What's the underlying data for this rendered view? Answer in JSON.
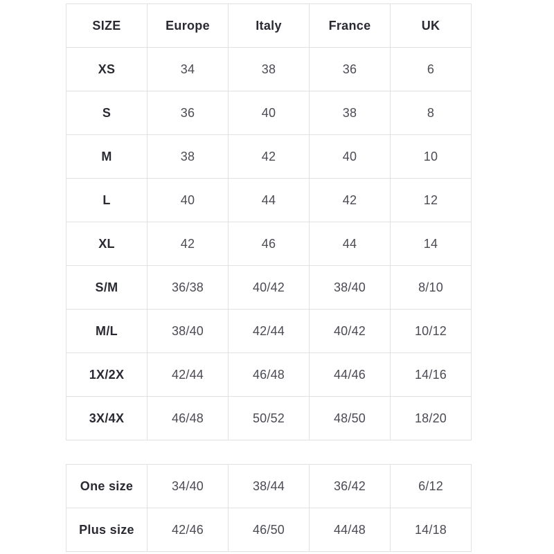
{
  "page": {
    "background": "#ffffff"
  },
  "colors": {
    "border": "#e1e1e1",
    "header_text": "#2a2a33",
    "value_text": "#4b4b54",
    "cell_background": "#ffffff"
  },
  "chart_data": [
    {
      "type": "table",
      "columns": [
        "SIZE",
        "Europe",
        "Italy",
        "France",
        "UK"
      ],
      "rows": [
        [
          "XS",
          "34",
          "38",
          "36",
          "6"
        ],
        [
          "S",
          "36",
          "40",
          "38",
          "8"
        ],
        [
          "M",
          "38",
          "42",
          "40",
          "10"
        ],
        [
          "L",
          "40",
          "44",
          "42",
          "12"
        ],
        [
          "XL",
          "42",
          "46",
          "44",
          "14"
        ],
        [
          "S/M",
          "36/38",
          "40/42",
          "38/40",
          "8/10"
        ],
        [
          "M/L",
          "38/40",
          "42/44",
          "40/42",
          "10/12"
        ],
        [
          "1X/2X",
          "42/44",
          "46/48",
          "44/46",
          "14/16"
        ],
        [
          "3X/4X",
          "46/48",
          "50/52",
          "48/50",
          "18/20"
        ]
      ],
      "layout": {
        "grid": true,
        "header_row": true,
        "bold_first_column": true
      }
    },
    {
      "type": "table",
      "columns": [],
      "rows": [
        [
          "One size",
          "34/40",
          "38/44",
          "36/42",
          "6/12"
        ],
        [
          "Plus size",
          "42/46",
          "46/50",
          "44/48",
          "14/18"
        ]
      ],
      "layout": {
        "grid": true,
        "header_row": false,
        "bold_first_column": true
      }
    }
  ]
}
